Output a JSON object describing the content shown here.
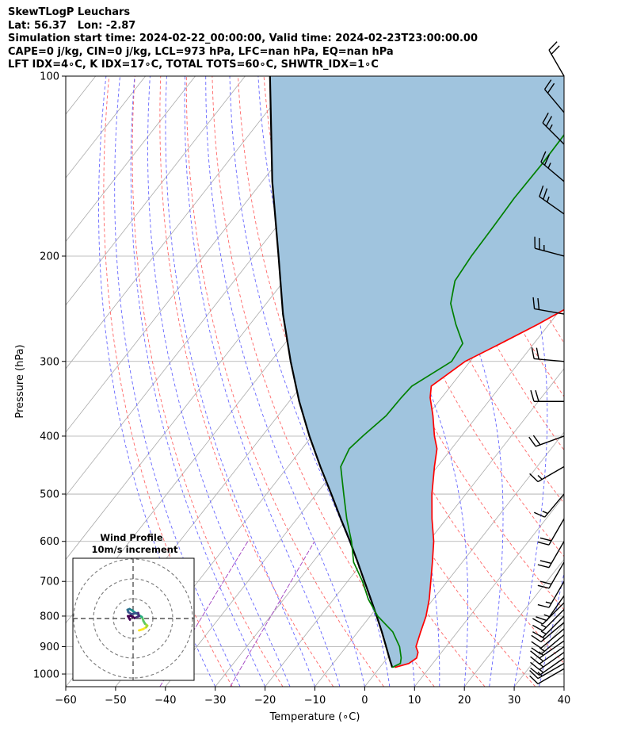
{
  "header": {
    "line1": "SkewTLogP Leuchars",
    "line2": "Lat: 56.37   Lon: -2.87",
    "line3": "Simulation start time: 2024-02-22_00:00:00, Valid time: 2024-02-23T23:00:00.00",
    "line4": "CAPE=0 j/kg, CIN=0 j/kg, LCL=973 hPa, LFC=nan hPa, EQ=nan hPa",
    "line5": "LFT IDX=4∘C, K IDX=17∘C, TOTAL TOTS=60∘C, SHWTR_IDX=1∘C"
  },
  "colors": {
    "temperature": "#ff0000",
    "dewpoint": "#008000",
    "parcel": "#000000",
    "fill": "#a0c4de",
    "isotherm": "#aaaaaa",
    "dry_adiabat": "#ff6666",
    "moist_adiabat": "#6666ff",
    "mixing_ratio": "#a040c0"
  },
  "chart_data": [
    {
      "type": "line",
      "title": "SkewTLogP Leuchars",
      "xlabel": "Temperature (∘C)",
      "ylabel": "Pressure (hPa)",
      "xlim": [
        -60,
        40
      ],
      "ylim": [
        1050,
        100
      ],
      "yscale": "log",
      "skew_deg_per_decade": 94,
      "grid": true,
      "x_ticks": [
        "−60",
        "−50",
        "−40",
        "−30",
        "−20",
        "−10",
        "0",
        "10",
        "20",
        "30",
        "40"
      ],
      "x_tick_values": [
        -60,
        -50,
        -40,
        -30,
        -20,
        -10,
        0,
        10,
        20,
        30,
        40
      ],
      "y_ticks": [
        "100",
        "200",
        "300",
        "400",
        "500",
        "600",
        "700",
        "800",
        "900",
        "1000"
      ],
      "y_tick_values": [
        100,
        200,
        300,
        400,
        500,
        600,
        700,
        800,
        900,
        1000
      ],
      "series": [
        {
          "name": "Temperature",
          "pressure": [
            975,
            960,
            940,
            920,
            900,
            850,
            800,
            750,
            700,
            650,
            600,
            550,
            500,
            450,
            420,
            400,
            370,
            345,
            330,
            300,
            280,
            260,
            240,
            220,
            200,
            180,
            165,
            150,
            130,
            115,
            100
          ],
          "values": [
            3.0,
            5.2,
            5.9,
            5.3,
            4.0,
            2.6,
            1.2,
            -0.8,
            -3.3,
            -6.0,
            -9.0,
            -12.9,
            -16.8,
            -20.6,
            -22.9,
            -25.4,
            -28.9,
            -32.3,
            -33.9,
            -31.0,
            -26.7,
            -22.2,
            -18.0,
            -15.0,
            -13.2,
            -15.7,
            -17.3,
            -19.3,
            -22.1,
            -23.3,
            -25.2
          ]
        },
        {
          "name": "Dewpoint",
          "pressure": [
            975,
            960,
            940,
            900,
            850,
            800,
            750,
            700,
            650,
            600,
            550,
            500,
            450,
            420,
            400,
            370,
            345,
            330,
            300,
            280,
            260,
            240,
            220,
            200,
            180,
            160,
            140,
            120,
            100
          ],
          "values": [
            2.5,
            3.5,
            2.8,
            0.7,
            -3.0,
            -8.5,
            -13.0,
            -17.0,
            -21.8,
            -25.5,
            -30.0,
            -34.5,
            -39.4,
            -40.5,
            -39.8,
            -38.3,
            -38.1,
            -37.8,
            -33.7,
            -34.3,
            -38.7,
            -43.0,
            -45.7,
            -46.3,
            -46.5,
            -46.8,
            -46.6,
            -46.8,
            -47.6
          ]
        },
        {
          "name": "Parcel",
          "pressure": [
            975,
            950,
            900,
            850,
            800,
            750,
            700,
            650,
            600,
            550,
            500,
            450,
            400,
            350,
            300,
            250,
            200,
            150,
            100
          ],
          "values": [
            2.5,
            1.0,
            -2.0,
            -5.2,
            -8.7,
            -12.5,
            -16.6,
            -21.0,
            -25.8,
            -31.2,
            -37.0,
            -43.5,
            -50.5,
            -58.0,
            -66.0,
            -75.0,
            -85.0,
            -98.0,
            -115.0
          ]
        }
      ],
      "wind_barbs": {
        "pressure": [
          980,
          960,
          940,
          920,
          900,
          880,
          860,
          840,
          820,
          800,
          780,
          760,
          740,
          700,
          650,
          600,
          550,
          500,
          450,
          400,
          350,
          300,
          250,
          200,
          170,
          150,
          130,
          115,
          100
        ],
        "speed_kt": [
          10,
          15,
          15,
          15,
          15,
          15,
          15,
          10,
          15,
          15,
          15,
          10,
          15,
          15,
          20,
          20,
          20,
          15,
          15,
          20,
          20,
          20,
          20,
          25,
          25,
          25,
          25,
          20,
          20
        ],
        "direction_deg": [
          240,
          240,
          235,
          235,
          235,
          235,
          230,
          230,
          230,
          225,
          225,
          225,
          215,
          210,
          210,
          210,
          210,
          220,
          240,
          250,
          270,
          275,
          280,
          285,
          305,
          310,
          315,
          320,
          330
        ]
      }
    },
    {
      "type": "scatter",
      "title": "Wind Profile",
      "subtitle": "10m/s increment",
      "ring_step_ms": 10,
      "rings": 3,
      "u": [
        1.5,
        2.5,
        3.3,
        3.6,
        3.0,
        2.6,
        2.4,
        2.2,
        1.5,
        1.0,
        0.3,
        -0.3,
        -0.9,
        -1.4,
        -1.2,
        -0.4,
        0.5,
        1.3,
        1.5,
        0.4,
        -0.6,
        -1.3,
        -0.8
      ],
      "v": [
        -3.0,
        -2.7,
        -2.2,
        -1.8,
        -1.3,
        -0.6,
        0.0,
        0.4,
        0.8,
        1.2,
        1.6,
        2.1,
        2.4,
        2.2,
        1.6,
        1.1,
        1.3,
        1.4,
        0.6,
        0.1,
        0.7,
        0.6,
        -0.3
      ]
    }
  ]
}
